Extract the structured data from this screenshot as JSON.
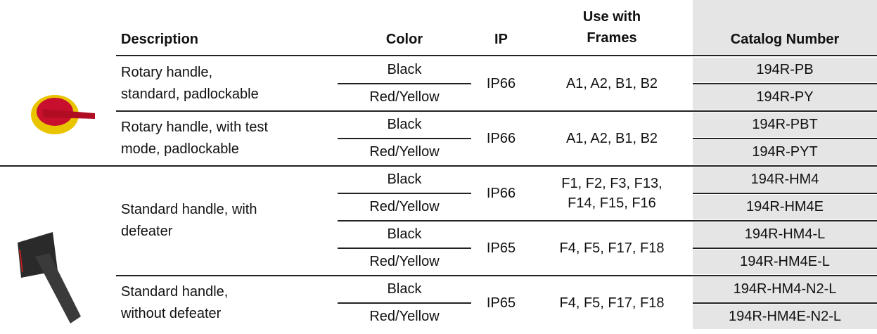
{
  "table": {
    "header": [
      "Description",
      "Color",
      "IP",
      "Use with\nFrames",
      "Catalog Number"
    ],
    "groups": [
      {
        "description": "Rotary handle,\nstandard, padlockable",
        "blocks": [
          {
            "ip": "IP66",
            "frames": "A1, A2, B1, B2",
            "rows": [
              {
                "color": "Black",
                "catalog": "194R-PB"
              },
              {
                "color": "Red/Yellow",
                "catalog": "194R-PY"
              }
            ]
          }
        ]
      },
      {
        "description": "Rotary handle, with test\nmode, padlockable",
        "blocks": [
          {
            "ip": "IP66",
            "frames": "A1, A2, B1, B2",
            "rows": [
              {
                "color": "Black",
                "catalog": "194R-PBT"
              },
              {
                "color": "Red/Yellow",
                "catalog": "194R-PYT"
              }
            ]
          }
        ]
      },
      {
        "description": "Standard handle, with\ndefeater",
        "blocks": [
          {
            "ip": "IP66",
            "frames": "F1, F2, F3, F13,\nF14, F15, F16",
            "rows": [
              {
                "color": "Black",
                "catalog": "194R-HM4"
              },
              {
                "color": "Red/Yellow",
                "catalog": "194R-HM4E"
              }
            ]
          },
          {
            "ip": "IP65",
            "frames": "F4, F5, F17, F18",
            "rows": [
              {
                "color": "Black",
                "catalog": "194R-HM4-L"
              },
              {
                "color": "Red/Yellow",
                "catalog": "194R-HM4E-L"
              }
            ]
          }
        ]
      },
      {
        "description": "Standard handle,\nwithout defeater",
        "blocks": [
          {
            "ip": "IP65",
            "frames": "F4, F5, F17, F18",
            "rows": [
              {
                "color": "Black",
                "catalog": "194R-HM4-N2-L"
              },
              {
                "color": "Red/Yellow",
                "catalog": "194R-HM4E-N2-L"
              }
            ]
          }
        ]
      }
    ]
  }
}
